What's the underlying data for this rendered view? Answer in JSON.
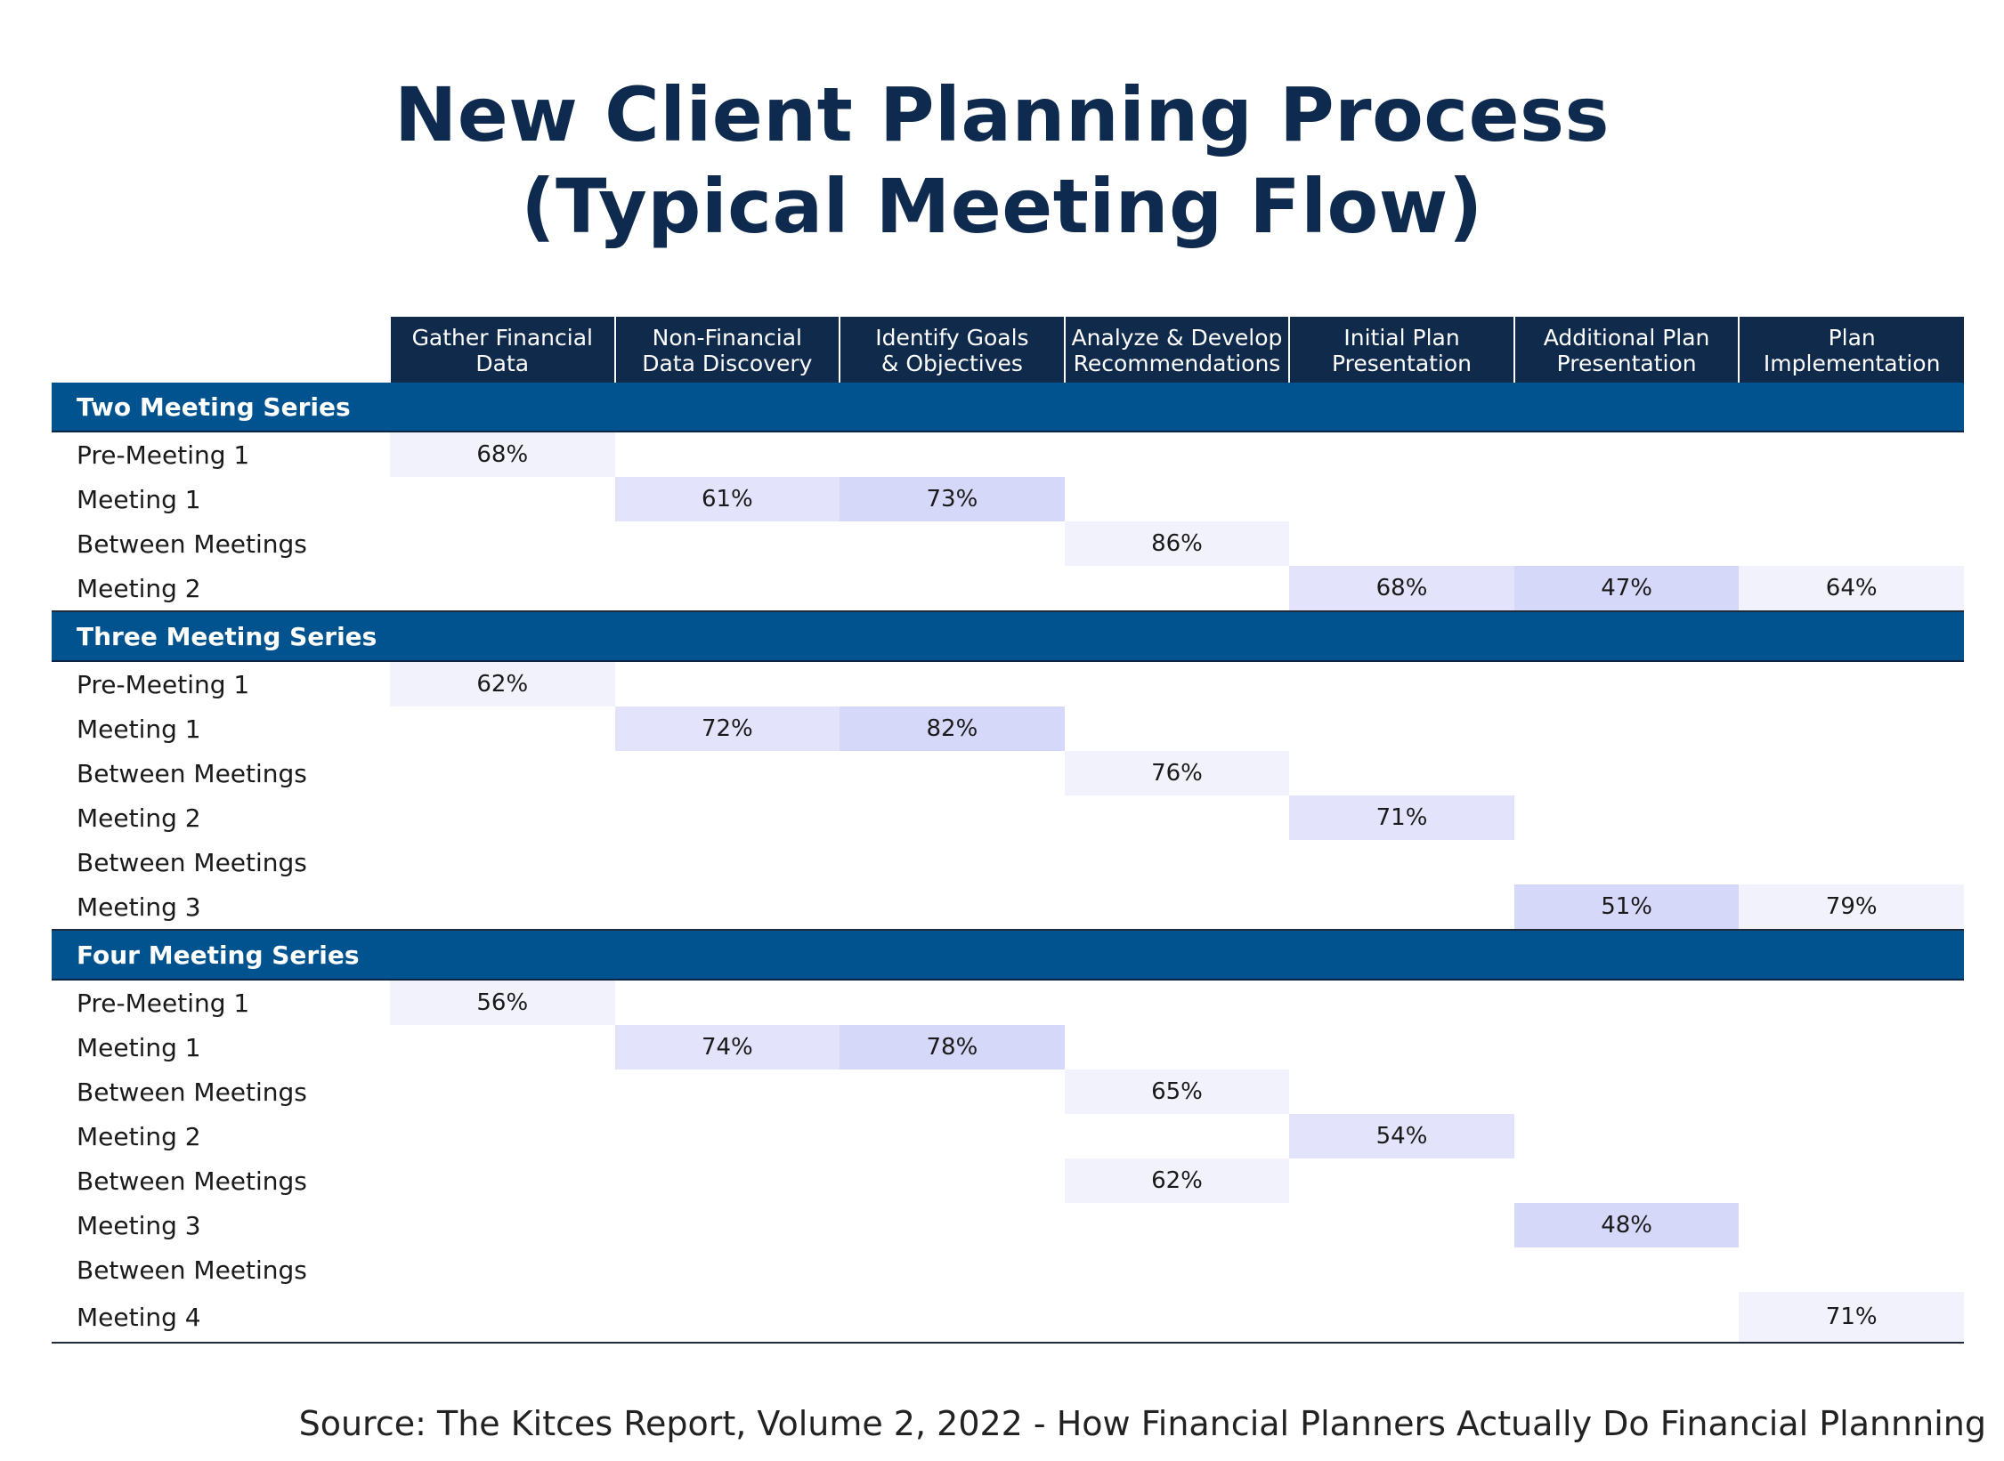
{
  "title_line1": "New Client Planning Process",
  "title_line2": "(Typical Meeting Flow)",
  "source": "Source: The Kitces Report, Volume 2, 2022 - How Financial Planners Actually Do Financial Plannning",
  "colors": {
    "header_bg": "#102a4c",
    "section_bg": "#00538f",
    "cell_light": "#f2f2fd",
    "cell_mid": "#e3e4fb",
    "cell_dark": "#d6d8fa"
  },
  "chart_data": {
    "type": "table",
    "columns": [
      [
        "Gather Financial",
        "Data"
      ],
      [
        "Non-Financial",
        "Data Discovery"
      ],
      [
        "Identify Goals",
        "& Objectives"
      ],
      [
        "Analyze & Develop",
        "Recommendations"
      ],
      [
        "Initial Plan",
        "Presentation"
      ],
      [
        "Additional Plan",
        "Presentation"
      ],
      [
        "Plan",
        "Implementation"
      ]
    ],
    "sections": [
      {
        "name": "Two Meeting Series",
        "rows": [
          {
            "label": "Pre-Meeting 1",
            "cells": [
              "68%",
              "",
              "",
              "",
              "",
              "",
              ""
            ],
            "shade": [
              "light",
              "",
              "",
              "",
              "",
              "",
              ""
            ]
          },
          {
            "label": "Meeting 1",
            "cells": [
              "",
              "61%",
              "73%",
              "",
              "",
              "",
              ""
            ],
            "shade": [
              "",
              "mid",
              "dark",
              "",
              "",
              "",
              ""
            ]
          },
          {
            "label": "Between Meetings",
            "cells": [
              "",
              "",
              "",
              "86%",
              "",
              "",
              ""
            ],
            "shade": [
              "",
              "",
              "",
              "light",
              "",
              "",
              ""
            ]
          },
          {
            "label": "Meeting 2",
            "cells": [
              "",
              "",
              "",
              "",
              "68%",
              "47%",
              "64%"
            ],
            "shade": [
              "",
              "",
              "",
              "",
              "mid",
              "dark",
              "light"
            ]
          }
        ]
      },
      {
        "name": "Three Meeting Series",
        "rows": [
          {
            "label": "Pre-Meeting 1",
            "cells": [
              "62%",
              "",
              "",
              "",
              "",
              "",
              ""
            ],
            "shade": [
              "light",
              "",
              "",
              "",
              "",
              "",
              ""
            ]
          },
          {
            "label": "Meeting 1",
            "cells": [
              "",
              "72%",
              "82%",
              "",
              "",
              "",
              ""
            ],
            "shade": [
              "",
              "mid",
              "dark",
              "",
              "",
              "",
              ""
            ]
          },
          {
            "label": "Between Meetings",
            "cells": [
              "",
              "",
              "",
              "76%",
              "",
              "",
              ""
            ],
            "shade": [
              "",
              "",
              "",
              "light",
              "",
              "",
              ""
            ]
          },
          {
            "label": "Meeting 2",
            "cells": [
              "",
              "",
              "",
              "",
              "71%",
              "",
              ""
            ],
            "shade": [
              "",
              "",
              "",
              "",
              "mid",
              "",
              ""
            ]
          },
          {
            "label": "Between Meetings",
            "cells": [
              "",
              "",
              "",
              "",
              "",
              "",
              ""
            ],
            "shade": [
              "",
              "",
              "",
              "",
              "",
              "",
              ""
            ]
          },
          {
            "label": "Meeting 3",
            "cells": [
              "",
              "",
              "",
              "",
              "",
              "51%",
              "79%"
            ],
            "shade": [
              "",
              "",
              "",
              "",
              "",
              "dark",
              "light"
            ]
          }
        ]
      },
      {
        "name": "Four Meeting Series",
        "rows": [
          {
            "label": "Pre-Meeting 1",
            "cells": [
              "56%",
              "",
              "",
              "",
              "",
              "",
              ""
            ],
            "shade": [
              "light",
              "",
              "",
              "",
              "",
              "",
              ""
            ]
          },
          {
            "label": "Meeting 1",
            "cells": [
              "",
              "74%",
              "78%",
              "",
              "",
              "",
              ""
            ],
            "shade": [
              "",
              "mid",
              "dark",
              "",
              "",
              "",
              ""
            ]
          },
          {
            "label": "Between Meetings",
            "cells": [
              "",
              "",
              "",
              "65%",
              "",
              "",
              ""
            ],
            "shade": [
              "",
              "",
              "",
              "light",
              "",
              "",
              ""
            ]
          },
          {
            "label": "Meeting 2",
            "cells": [
              "",
              "",
              "",
              "",
              "54%",
              "",
              ""
            ],
            "shade": [
              "",
              "",
              "",
              "",
              "mid",
              "",
              ""
            ]
          },
          {
            "label": "Between Meetings",
            "cells": [
              "",
              "",
              "",
              "62%",
              "",
              "",
              ""
            ],
            "shade": [
              "",
              "",
              "",
              "light",
              "",
              "",
              ""
            ]
          },
          {
            "label": "Meeting 3",
            "cells": [
              "",
              "",
              "",
              "",
              "",
              "48%",
              ""
            ],
            "shade": [
              "",
              "",
              "",
              "",
              "",
              "dark",
              ""
            ]
          },
          {
            "label": "Between Meetings",
            "cells": [
              "",
              "",
              "",
              "",
              "",
              "",
              ""
            ],
            "shade": [
              "",
              "",
              "",
              "",
              "",
              "",
              ""
            ]
          },
          {
            "label": "Meeting 4",
            "cells": [
              "",
              "",
              "",
              "",
              "",
              "",
              "71%"
            ],
            "shade": [
              "",
              "",
              "",
              "",
              "",
              "",
              "light"
            ]
          }
        ]
      }
    ]
  }
}
